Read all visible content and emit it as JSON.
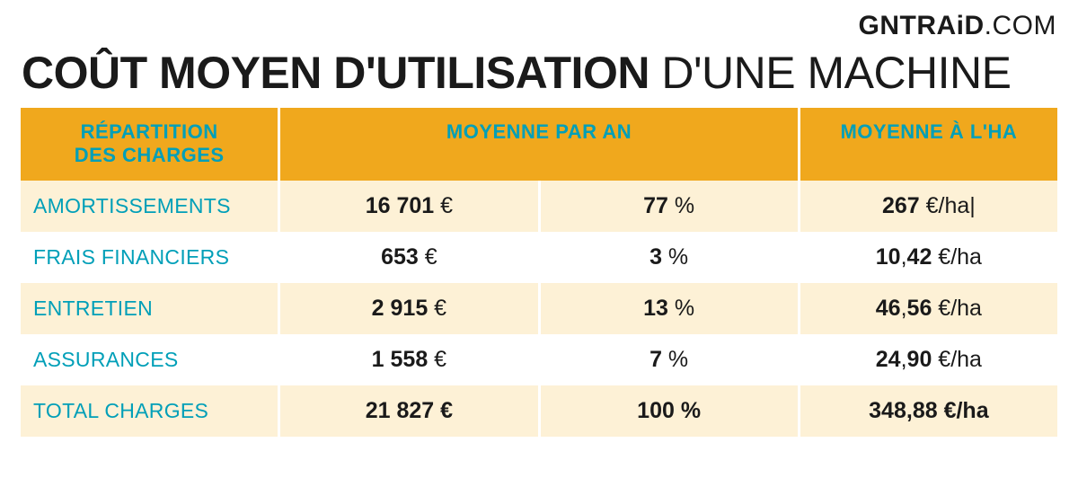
{
  "brand": {
    "g": "G",
    "bold": "NTRAiD",
    "rest": ".COM"
  },
  "title": {
    "strong": "COÛT MOYEN D'UTILISATION",
    "light": " D'UNE MACHINE"
  },
  "table": {
    "header_bg": "#f0a81d",
    "header_fg": "#009fb8",
    "row_alt_bg": "#fdf1d6",
    "label_color": "#009fb8",
    "columns": [
      {
        "label_line1": "RÉPARTITION",
        "label_line2": "DES CHARGES"
      },
      {
        "label_line1": "MOYENNE PAR AN",
        "span": 2
      },
      {
        "label_line1": "MOYENNE À L'HA"
      }
    ],
    "rows": [
      {
        "label": "AMORTISSEMENTS",
        "val_eur_b": "16 701",
        "val_eur_u": " €",
        "val_pct_b": "77",
        "val_pct_u": " %",
        "val_ha_b": "267",
        "val_ha_u": " €/ha|"
      },
      {
        "label": "FRAIS FINANCIERS",
        "val_eur_b": "653",
        "val_eur_u": " €",
        "val_pct_b": "3",
        "val_pct_u": " %",
        "val_ha_b": "10",
        "val_ha_m": ",",
        "val_ha_b2": "42",
        "val_ha_u": " €/ha"
      },
      {
        "label": "ENTRETIEN",
        "val_eur_b": "2 915",
        "val_eur_u": " €",
        "val_pct_b": "13",
        "val_pct_u": " %",
        "val_ha_b": "46",
        "val_ha_m": ",",
        "val_ha_b2": "56",
        "val_ha_u": " €/ha"
      },
      {
        "label": "ASSURANCES",
        "val_eur_b": "1 558",
        "val_eur_u": " €",
        "val_pct_b": "7",
        "val_pct_u": " %",
        "val_ha_b": "24",
        "val_ha_m": ",",
        "val_ha_b2": "90",
        "val_ha_u": " €/ha"
      }
    ],
    "total": {
      "label": "TOTAL CHARGES",
      "val_eur": "21 827 €",
      "val_pct": "100 %",
      "val_ha": "348,88 €/ha"
    }
  }
}
